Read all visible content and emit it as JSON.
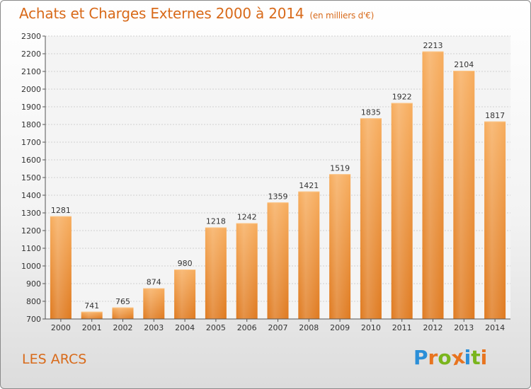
{
  "title": "Achats et Charges Externes 2000 à 2014",
  "unit": "(en milliers d'€)",
  "town": "LES ARCS",
  "logo": {
    "text": "Proxiti",
    "letters": [
      {
        "ch": "P",
        "color": "#2b8fd8"
      },
      {
        "ch": "r",
        "color": "#e8741f"
      },
      {
        "ch": "o",
        "color": "#7ab51d"
      },
      {
        "ch": "x",
        "color": "#e8741f"
      },
      {
        "ch": "i",
        "color": "#2b8fd8"
      },
      {
        "ch": "t",
        "color": "#7ab51d"
      },
      {
        "ch": "i",
        "color": "#e8741f"
      }
    ]
  },
  "colors": {
    "accent": "#d86a1a",
    "bar_top": "#f6a95a",
    "bar_bottom": "#e17c22"
  },
  "chart_data": {
    "type": "bar",
    "categories": [
      "2000",
      "2001",
      "2002",
      "2003",
      "2004",
      "2005",
      "2006",
      "2007",
      "2008",
      "2009",
      "2010",
      "2011",
      "2012",
      "2013",
      "2014"
    ],
    "values": [
      1281,
      741,
      765,
      874,
      980,
      1218,
      1242,
      1359,
      1421,
      1519,
      1835,
      1922,
      2213,
      2104,
      1817
    ],
    "ylim": [
      700,
      2300
    ],
    "yticks": [
      700,
      800,
      900,
      1000,
      1100,
      1200,
      1300,
      1400,
      1500,
      1600,
      1700,
      1800,
      1900,
      2000,
      2100,
      2200,
      2300
    ],
    "grid": true,
    "xlabel": "",
    "ylabel": ""
  }
}
